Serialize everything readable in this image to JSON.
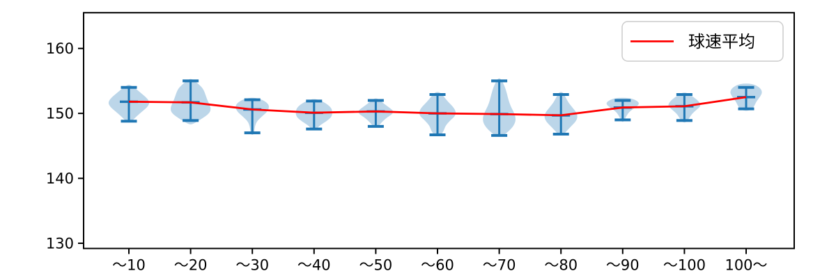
{
  "figure": {
    "background": "#ffffff",
    "axis_color": "#000000"
  },
  "legend": {
    "label": "球速平均",
    "line_color": "#ff0000"
  },
  "chart_data": {
    "type": "violin+line",
    "title": "",
    "xlabel": "",
    "ylabel": "",
    "categories": [
      "～10",
      "～20",
      "～30",
      "～40",
      "～50",
      "～60",
      "～70",
      "～80",
      "～90",
      "～100",
      "100～"
    ],
    "y_ticks": [
      130,
      140,
      150,
      160
    ],
    "ylim": [
      129.2,
      165.5
    ],
    "grid": false,
    "legend_position": "upper right",
    "colors": {
      "violin_fill": "#bcd6e9",
      "whisker": "#1f77b4",
      "mean_line": "#ff0000"
    },
    "series": [
      {
        "name": "球速平均",
        "type": "line",
        "color": "#ff0000",
        "values": [
          151.8,
          151.7,
          150.6,
          150.1,
          150.3,
          150.0,
          149.9,
          149.7,
          150.9,
          151.1,
          152.5
        ]
      }
    ],
    "violins": [
      {
        "category": "～10",
        "min": 148.8,
        "max": 154.0,
        "mean": 151.8,
        "profile": [
          [
            154.4,
            0.06
          ],
          [
            153.9,
            0.3
          ],
          [
            153.2,
            0.55
          ],
          [
            152.4,
            0.85
          ],
          [
            151.7,
            1.0
          ],
          [
            151.0,
            0.9
          ],
          [
            150.2,
            0.6
          ],
          [
            149.4,
            0.32
          ],
          [
            148.6,
            0.08
          ]
        ]
      },
      {
        "category": "～20",
        "min": 148.9,
        "max": 155.0,
        "mean": 151.7,
        "profile": [
          [
            155.3,
            0.08
          ],
          [
            154.6,
            0.35
          ],
          [
            153.8,
            0.6
          ],
          [
            153.0,
            0.7
          ],
          [
            152.2,
            0.78
          ],
          [
            151.4,
            0.9
          ],
          [
            150.7,
            0.97
          ],
          [
            150.0,
            0.9
          ],
          [
            149.2,
            0.55
          ],
          [
            148.3,
            0.1
          ]
        ]
      },
      {
        "category": "～30",
        "min": 147.0,
        "max": 152.1,
        "mean": 150.6,
        "profile": [
          [
            152.4,
            0.2
          ],
          [
            152.0,
            0.55
          ],
          [
            151.4,
            0.78
          ],
          [
            150.8,
            0.8
          ],
          [
            150.2,
            0.7
          ],
          [
            149.5,
            0.45
          ],
          [
            148.8,
            0.22
          ],
          [
            148.0,
            0.12
          ],
          [
            147.3,
            0.1
          ],
          [
            146.7,
            0.05
          ]
        ]
      },
      {
        "category": "～40",
        "min": 147.6,
        "max": 151.9,
        "mean": 150.1,
        "profile": [
          [
            152.2,
            0.15
          ],
          [
            151.6,
            0.55
          ],
          [
            150.9,
            0.82
          ],
          [
            150.2,
            0.88
          ],
          [
            149.5,
            0.85
          ],
          [
            148.8,
            0.6
          ],
          [
            148.1,
            0.25
          ],
          [
            147.4,
            0.08
          ]
        ]
      },
      {
        "category": "～50",
        "min": 148.0,
        "max": 152.0,
        "mean": 150.3,
        "profile": [
          [
            152.3,
            0.1
          ],
          [
            151.7,
            0.3
          ],
          [
            151.0,
            0.6
          ],
          [
            150.4,
            0.85
          ],
          [
            149.9,
            0.8
          ],
          [
            149.4,
            0.55
          ],
          [
            148.7,
            0.3
          ],
          [
            147.9,
            0.1
          ]
        ]
      },
      {
        "category": "～60",
        "min": 146.7,
        "max": 152.9,
        "mean": 150.0,
        "profile": [
          [
            153.3,
            0.1
          ],
          [
            152.6,
            0.3
          ],
          [
            151.8,
            0.5
          ],
          [
            151.0,
            0.75
          ],
          [
            150.3,
            0.88
          ],
          [
            149.6,
            0.85
          ],
          [
            148.9,
            0.6
          ],
          [
            148.1,
            0.38
          ],
          [
            147.3,
            0.3
          ],
          [
            146.5,
            0.12
          ]
        ]
      },
      {
        "category": "～70",
        "min": 146.6,
        "max": 155.0,
        "mean": 149.9,
        "profile": [
          [
            155.4,
            0.06
          ],
          [
            154.6,
            0.2
          ],
          [
            153.8,
            0.3
          ],
          [
            152.9,
            0.38
          ],
          [
            152.0,
            0.45
          ],
          [
            151.1,
            0.55
          ],
          [
            150.3,
            0.68
          ],
          [
            149.5,
            0.78
          ],
          [
            148.7,
            0.78
          ],
          [
            147.9,
            0.65
          ],
          [
            147.1,
            0.4
          ],
          [
            146.4,
            0.12
          ]
        ]
      },
      {
        "category": "～80",
        "min": 146.8,
        "max": 152.9,
        "mean": 149.7,
        "profile": [
          [
            153.3,
            0.08
          ],
          [
            152.5,
            0.22
          ],
          [
            151.7,
            0.35
          ],
          [
            150.9,
            0.55
          ],
          [
            150.1,
            0.75
          ],
          [
            149.4,
            0.8
          ],
          [
            148.7,
            0.7
          ],
          [
            147.9,
            0.45
          ],
          [
            147.1,
            0.22
          ],
          [
            146.6,
            0.08
          ]
        ]
      },
      {
        "category": "～90",
        "min": 149.0,
        "max": 152.0,
        "mean": 150.9,
        "profile": [
          [
            152.4,
            0.35
          ],
          [
            151.9,
            0.72
          ],
          [
            151.4,
            0.8
          ],
          [
            150.8,
            0.55
          ],
          [
            150.2,
            0.3
          ],
          [
            149.6,
            0.18
          ],
          [
            149.1,
            0.1
          ],
          [
            148.7,
            0.05
          ]
        ]
      },
      {
        "category": "～100",
        "min": 148.9,
        "max": 152.9,
        "mean": 151.1,
        "profile": [
          [
            153.2,
            0.12
          ],
          [
            152.6,
            0.4
          ],
          [
            151.9,
            0.68
          ],
          [
            151.2,
            0.8
          ],
          [
            150.6,
            0.6
          ],
          [
            149.9,
            0.35
          ],
          [
            149.2,
            0.22
          ],
          [
            148.6,
            0.08
          ]
        ]
      },
      {
        "category": "100～",
        "min": 150.7,
        "max": 154.0,
        "mean": 152.5,
        "profile": [
          [
            154.6,
            0.3
          ],
          [
            154.0,
            0.65
          ],
          [
            153.3,
            0.78
          ],
          [
            152.6,
            0.68
          ],
          [
            151.9,
            0.5
          ],
          [
            151.2,
            0.4
          ],
          [
            150.7,
            0.3
          ],
          [
            150.4,
            0.1
          ]
        ]
      }
    ]
  }
}
